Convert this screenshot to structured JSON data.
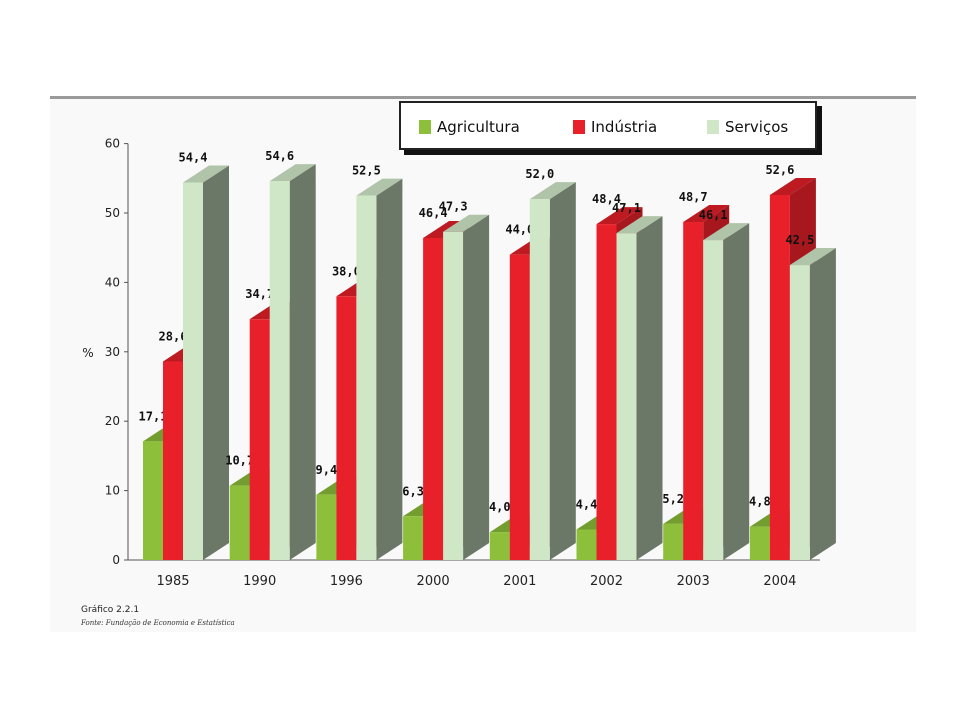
{
  "chart_data": {
    "type": "bar",
    "categories": [
      "1985",
      "1990",
      "1996",
      "2000",
      "2001",
      "2002",
      "2003",
      "2004"
    ],
    "series": [
      {
        "name": "Agricultura",
        "color": "#8dbf3a",
        "values": [
          17.1,
          10.7,
          9.4,
          6.3,
          4.0,
          4.4,
          5.2,
          4.8
        ],
        "labels": [
          "17,1",
          "10,7",
          "9,4",
          "6,3",
          "4,0",
          "4,4",
          "5,2",
          "4,8"
        ]
      },
      {
        "name": "Indústria",
        "color": "#e8202a",
        "values": [
          28.6,
          34.7,
          38.0,
          46.4,
          44.0,
          48.4,
          48.7,
          52.6
        ],
        "labels": [
          "28,6",
          "34,7",
          "38,0",
          "46,4",
          "44,0",
          "48,4",
          "48,7",
          "52,6"
        ]
      },
      {
        "name": "Serviços",
        "color": "#cfe6c7",
        "values": [
          54.4,
          54.6,
          52.5,
          47.3,
          52.0,
          47.1,
          46.1,
          42.5
        ],
        "labels": [
          "54,4",
          "54,6",
          "52,5",
          "47,3",
          "52,0",
          "47,1",
          "46,1",
          "42,5"
        ]
      }
    ],
    "ylabel": "%",
    "ylim": [
      0,
      60
    ],
    "yticks": [
      "0",
      "10",
      "20",
      "30",
      "40",
      "50",
      "60"
    ],
    "legend_position": "top-right"
  },
  "legend": {
    "items": [
      {
        "label": "Agricultura",
        "color": "#8dbf3a"
      },
      {
        "label": "Indústria",
        "color": "#e8202a"
      },
      {
        "label": "Serviços",
        "color": "#cfe6c7"
      }
    ]
  },
  "caption": "Gráfico 2.2.1",
  "source": "Fonte: Fundação de Economia e Estatística"
}
